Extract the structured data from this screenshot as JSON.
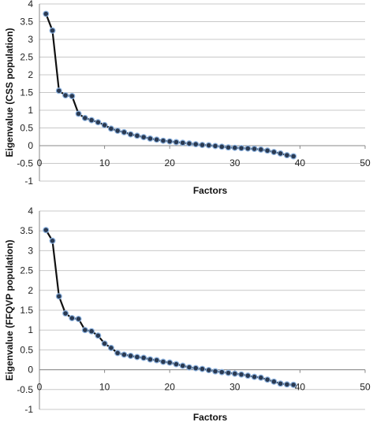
{
  "chart_data": [
    {
      "type": "line",
      "xlabel": "Factors",
      "ylabel": "Eigenvalue (CSS population)",
      "xlim": [
        0,
        50
      ],
      "ylim": [
        -1,
        4
      ],
      "xticks": [
        0,
        10,
        20,
        30,
        40,
        50
      ],
      "yticks": [
        -1,
        -0.5,
        0,
        0.5,
        1,
        1.5,
        2,
        2.5,
        3,
        3.5,
        4
      ],
      "grid": true,
      "series": [
        {
          "x": [
            1,
            2,
            3,
            4,
            5,
            6,
            7,
            8,
            9,
            10,
            11,
            12,
            13,
            14,
            15,
            16,
            17,
            18,
            19,
            20,
            21,
            22,
            23,
            24,
            25,
            26,
            27,
            28,
            29,
            30,
            31,
            32,
            33,
            34,
            35,
            36,
            37,
            38,
            39
          ],
          "values": [
            3.72,
            3.25,
            1.55,
            1.42,
            1.4,
            0.9,
            0.78,
            0.72,
            0.66,
            0.58,
            0.48,
            0.42,
            0.38,
            0.32,
            0.28,
            0.24,
            0.2,
            0.17,
            0.14,
            0.12,
            0.1,
            0.08,
            0.06,
            0.04,
            0.02,
            0.01,
            -0.01,
            -0.03,
            -0.05,
            -0.06,
            -0.07,
            -0.08,
            -0.09,
            -0.11,
            -0.14,
            -0.18,
            -0.22,
            -0.27,
            -0.3
          ]
        }
      ]
    },
    {
      "type": "line",
      "xlabel": "Factors",
      "ylabel": "Eigenvalue (FFQVP population)",
      "xlim": [
        0,
        50
      ],
      "ylim": [
        -1,
        4
      ],
      "xticks": [
        0,
        10,
        20,
        30,
        40,
        50
      ],
      "yticks": [
        -1,
        -0.5,
        0,
        0.5,
        1,
        1.5,
        2,
        2.5,
        3,
        3.5,
        4
      ],
      "grid": true,
      "series": [
        {
          "x": [
            1,
            2,
            3,
            4,
            5,
            6,
            7,
            8,
            9,
            10,
            11,
            12,
            13,
            14,
            15,
            16,
            17,
            18,
            19,
            20,
            21,
            22,
            23,
            24,
            25,
            26,
            27,
            28,
            29,
            30,
            31,
            32,
            33,
            34,
            35,
            36,
            37,
            38,
            39
          ],
          "values": [
            3.52,
            3.25,
            1.85,
            1.42,
            1.3,
            1.28,
            1.0,
            0.97,
            0.86,
            0.66,
            0.55,
            0.42,
            0.38,
            0.35,
            0.32,
            0.3,
            0.26,
            0.24,
            0.2,
            0.18,
            0.14,
            0.1,
            0.06,
            0.04,
            0.02,
            -0.01,
            -0.04,
            -0.06,
            -0.08,
            -0.1,
            -0.12,
            -0.15,
            -0.18,
            -0.2,
            -0.25,
            -0.3,
            -0.35,
            -0.37,
            -0.38
          ]
        }
      ]
    }
  ]
}
